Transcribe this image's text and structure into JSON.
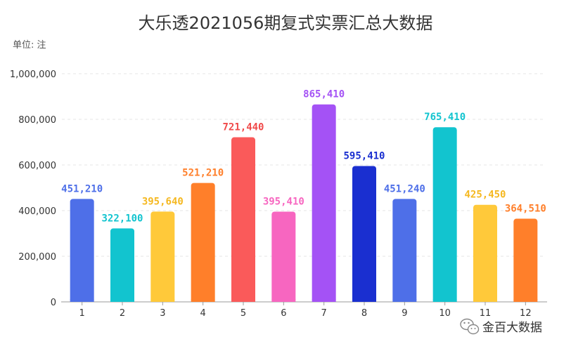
{
  "chart_data": {
    "type": "bar",
    "title": "大乐透2021056期复式实票汇总大数据",
    "unit_label": "单位: 注",
    "xlabel": "",
    "ylabel": "",
    "ylim": [
      0,
      1000000
    ],
    "yticks": [
      0,
      200000,
      400000,
      600000,
      800000,
      1000000
    ],
    "ytick_labels": [
      "0",
      "200,000",
      "400,000",
      "600,000",
      "800,000",
      "1,000,000"
    ],
    "grid": true,
    "categories": [
      "1",
      "2",
      "3",
      "4",
      "5",
      "6",
      "7",
      "8",
      "9",
      "10",
      "11",
      "12"
    ],
    "values": [
      451210,
      322100,
      395640,
      521210,
      721440,
      395410,
      865410,
      595410,
      451240,
      765410,
      425450,
      364510
    ],
    "value_labels": [
      "451,210",
      "322,100",
      "395,640",
      "521,210",
      "721,440",
      "395,410",
      "865,410",
      "595,410",
      "451,240",
      "765,410",
      "425,450",
      "364,510"
    ],
    "colors": [
      "#4e6fe8",
      "#12c4cf",
      "#ffc93a",
      "#ff7f2a",
      "#fa5a5a",
      "#f766c0",
      "#a452f5",
      "#1a2fd0",
      "#4e6fe8",
      "#12c4cf",
      "#ffc93a",
      "#ff7f2a"
    ],
    "label_colors": [
      "#4e6fe8",
      "#12c4cf",
      "#f5b820",
      "#ff7f2a",
      "#f04a4a",
      "#f766c0",
      "#a452f5",
      "#1a2fd0",
      "#4e6fe8",
      "#12c4cf",
      "#f5b820",
      "#ff7f2a"
    ]
  },
  "watermark": {
    "text": "金百大数据",
    "icon": "wechat-icon"
  }
}
